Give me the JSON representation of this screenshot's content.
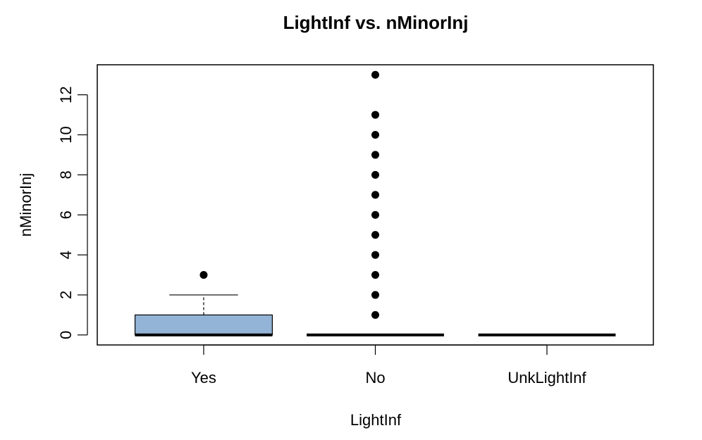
{
  "chart_data": {
    "type": "boxplot",
    "title": "LightInf  vs. nMinorInj",
    "xlabel": "LightInf",
    "ylabel": "nMinorInj",
    "categories": [
      "Yes",
      "No",
      "UnkLightInf"
    ],
    "ylim": [
      -0.5,
      13.5
    ],
    "yticks": [
      0,
      2,
      4,
      6,
      8,
      10,
      12
    ],
    "grid": false,
    "legend": "none",
    "box_fill_color": "#93b4d6",
    "line_color": "#000000",
    "boxes": [
      {
        "category": "Yes",
        "min": 0,
        "q1": 0,
        "median": 0,
        "q3": 1,
        "max": 2,
        "outliers": [
          3
        ]
      },
      {
        "category": "No",
        "min": 0,
        "q1": 0,
        "median": 0,
        "q3": 0,
        "max": 0,
        "outliers": [
          1,
          2,
          3,
          4,
          5,
          6,
          7,
          8,
          9,
          10,
          11,
          13
        ]
      },
      {
        "category": "UnkLightInf",
        "min": 0,
        "q1": 0,
        "median": 0,
        "q3": 0,
        "max": 0,
        "outliers": []
      }
    ]
  }
}
